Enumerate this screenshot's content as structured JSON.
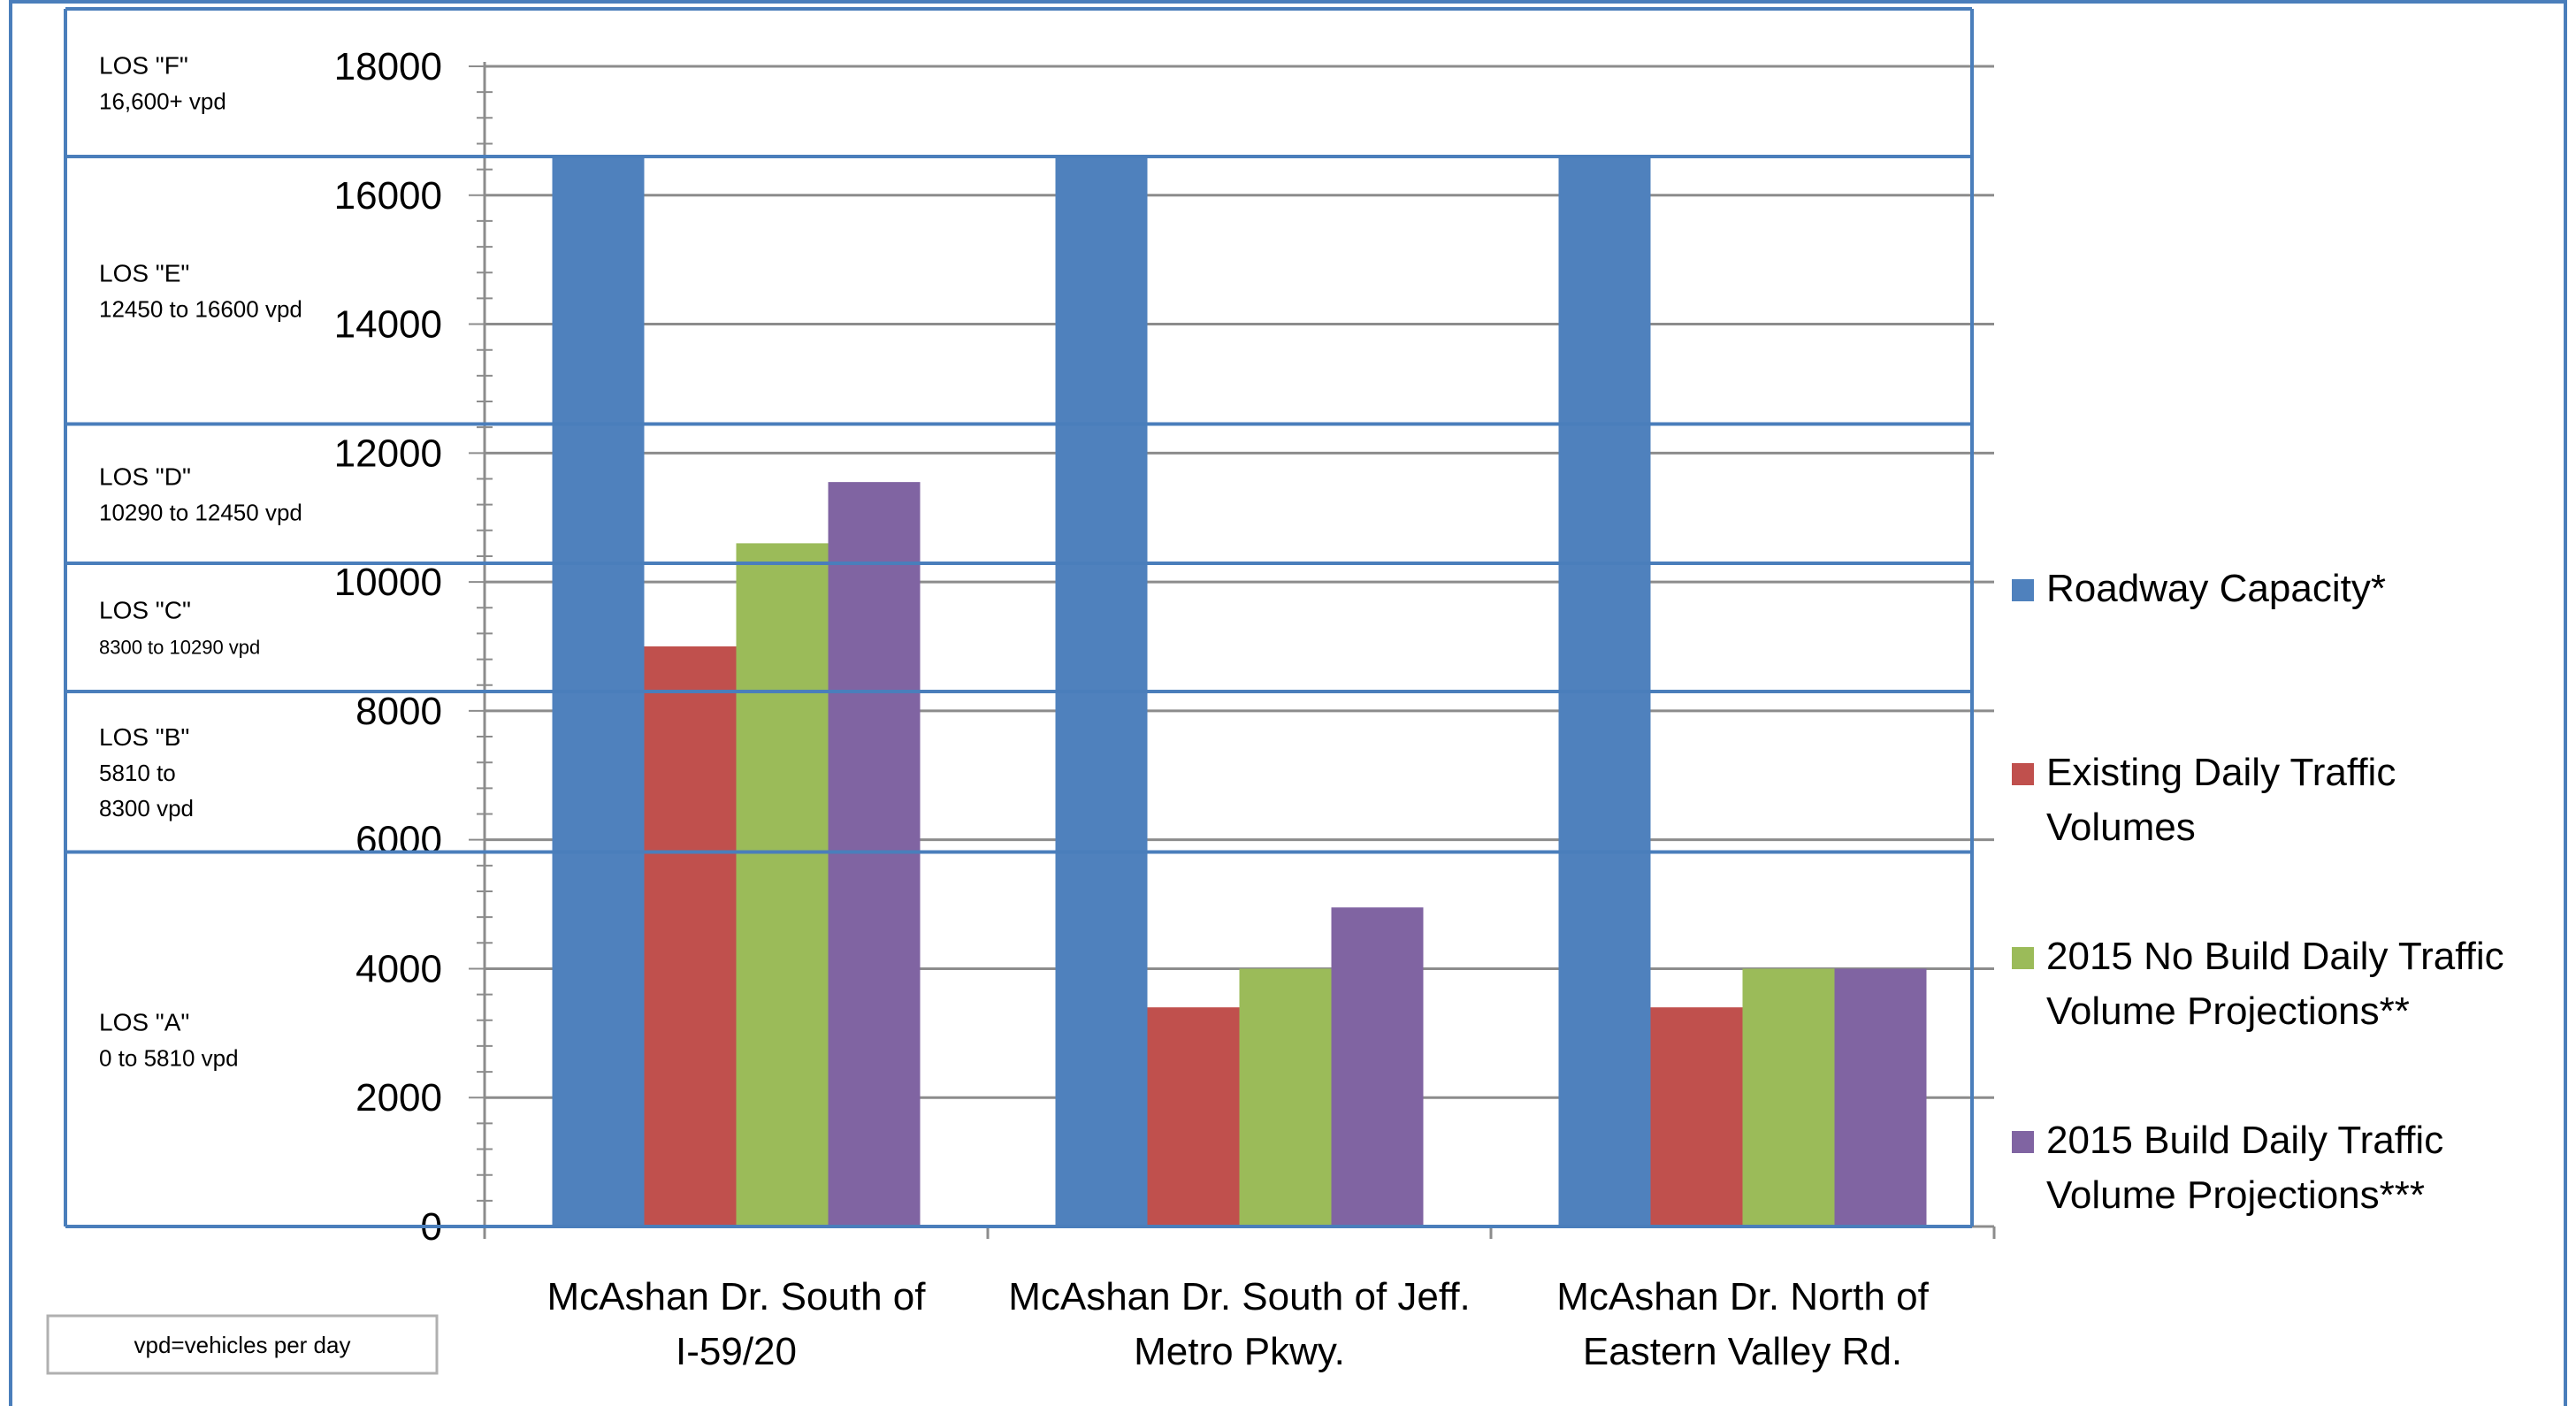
{
  "chart_data": {
    "type": "bar",
    "categories": [
      [
        "McAshan Dr. South of",
        "I-59/20"
      ],
      [
        "McAshan Dr. South of Jeff.",
        "Metro Pkwy."
      ],
      [
        "McAshan Dr. North of",
        "Eastern Valley Rd."
      ]
    ],
    "series": [
      {
        "name": [
          "Roadway Capacity*"
        ],
        "color": "#4F81BD",
        "values": [
          16600,
          16600,
          16600
        ]
      },
      {
        "name": [
          "Existing Daily Traffic",
          "Volumes"
        ],
        "color": "#C0504D",
        "values": [
          9000,
          3400,
          3400
        ]
      },
      {
        "name": [
          "2015 No Build Daily Traffic",
          "Volume Projections**"
        ],
        "color": "#9BBB59",
        "values": [
          10600,
          4000,
          4000
        ]
      },
      {
        "name": [
          "2015 Build Daily Traffic",
          "Volume Projections***"
        ],
        "color": "#8064A2",
        "values": [
          11550,
          4950,
          4000
        ]
      }
    ],
    "ylim": [
      0,
      18000
    ],
    "yticks": [
      0,
      2000,
      4000,
      6000,
      8000,
      10000,
      12000,
      14000,
      16000,
      18000
    ],
    "grid": true,
    "legend_position": "right",
    "los_bands": [
      {
        "name": "LOS \"A\"",
        "range_lines": [
          "0 to 5810 vpd"
        ],
        "upper": 5810
      },
      {
        "name": "LOS \"B\"",
        "range_lines": [
          "5810 to",
          "8300 vpd"
        ],
        "upper": 8300
      },
      {
        "name": "LOS \"C\"",
        "range_lines": [
          "8300 to 10290 vpd"
        ],
        "upper": 10290
      },
      {
        "name": "LOS \"D\"",
        "range_lines": [
          "10290 to 12450 vpd"
        ],
        "upper": 12450
      },
      {
        "name": "LOS \"E\"",
        "range_lines": [
          "12450 to 16600 vpd"
        ],
        "upper": 16600
      },
      {
        "name": "LOS \"F\"",
        "range_lines": [
          "16,600+ vpd"
        ],
        "upper": 18000
      }
    ],
    "band_border_color": "#4A7EBB",
    "note": "vpd=vehicles per day"
  }
}
